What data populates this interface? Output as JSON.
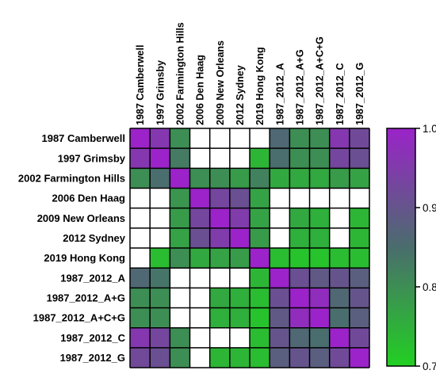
{
  "chart_data": {
    "type": "heatmap",
    "row_labels": [
      "1987 Camberwell",
      "1997 Grimsby",
      "2002 Farmington Hills",
      "2006 Den Haag",
      "2009 New Orleans",
      "2012 Sydney",
      "2019 Hong Kong",
      "1987_2012_A",
      "1987_2012_A+G",
      "1987_2012_A+C+G",
      "1987_2012_C",
      "1987_2012_G"
    ],
    "col_labels": [
      "1987 Camberwell",
      "1997 Grimsby",
      "2002 Farmington Hills",
      "2006 Den Haag",
      "2009 New Orleans",
      "2012 Sydney",
      "2019 Hong Kong",
      "1987_2012_A",
      "1987_2012_A+G",
      "1987_2012_A+C+G",
      "1987_2012_C",
      "1987_2012_G"
    ],
    "values": [
      [
        1.0,
        0.96,
        0.8,
        null,
        null,
        null,
        null,
        0.86,
        0.8,
        0.8,
        0.96,
        0.92
      ],
      [
        0.96,
        1.0,
        0.83,
        null,
        null,
        null,
        0.74,
        0.85,
        0.8,
        0.8,
        0.93,
        0.91
      ],
      [
        0.8,
        0.85,
        1.0,
        0.8,
        0.8,
        0.78,
        0.82,
        0.76,
        0.76,
        0.76,
        0.78,
        0.77
      ],
      [
        null,
        null,
        0.79,
        1.0,
        0.93,
        0.91,
        0.77,
        null,
        null,
        null,
        null,
        null
      ],
      [
        null,
        null,
        0.78,
        0.93,
        1.0,
        0.95,
        0.77,
        null,
        0.76,
        0.75,
        null,
        0.74
      ],
      [
        null,
        null,
        0.77,
        0.91,
        0.95,
        1.0,
        0.78,
        null,
        0.75,
        0.75,
        null,
        0.74
      ],
      [
        null,
        0.73,
        0.8,
        0.76,
        0.77,
        0.78,
        1.0,
        0.73,
        0.72,
        0.72,
        0.73,
        0.73
      ],
      [
        0.86,
        0.84,
        null,
        null,
        null,
        null,
        0.74,
        1.0,
        0.91,
        0.89,
        0.9,
        0.88
      ],
      [
        0.8,
        0.8,
        null,
        null,
        0.76,
        0.75,
        0.73,
        0.91,
        1.0,
        0.98,
        0.86,
        0.9
      ],
      [
        0.8,
        0.8,
        null,
        null,
        0.75,
        0.75,
        0.72,
        0.89,
        0.98,
        1.0,
        0.85,
        0.88
      ],
      [
        0.96,
        0.93,
        0.8,
        null,
        null,
        null,
        0.73,
        0.9,
        0.86,
        0.85,
        1.0,
        0.92
      ],
      [
        0.92,
        0.91,
        0.8,
        null,
        0.74,
        0.74,
        0.73,
        0.88,
        0.9,
        0.88,
        0.92,
        1.0
      ]
    ],
    "colorbar": {
      "range": [
        0.7,
        1.0
      ],
      "ticks": [
        "1.0",
        "0.9",
        "0.8",
        "0.7"
      ],
      "colors": [
        "#22d022",
        "#4a6d6d",
        "#9b23c9"
      ]
    },
    "missing_color": "#ffffff"
  }
}
